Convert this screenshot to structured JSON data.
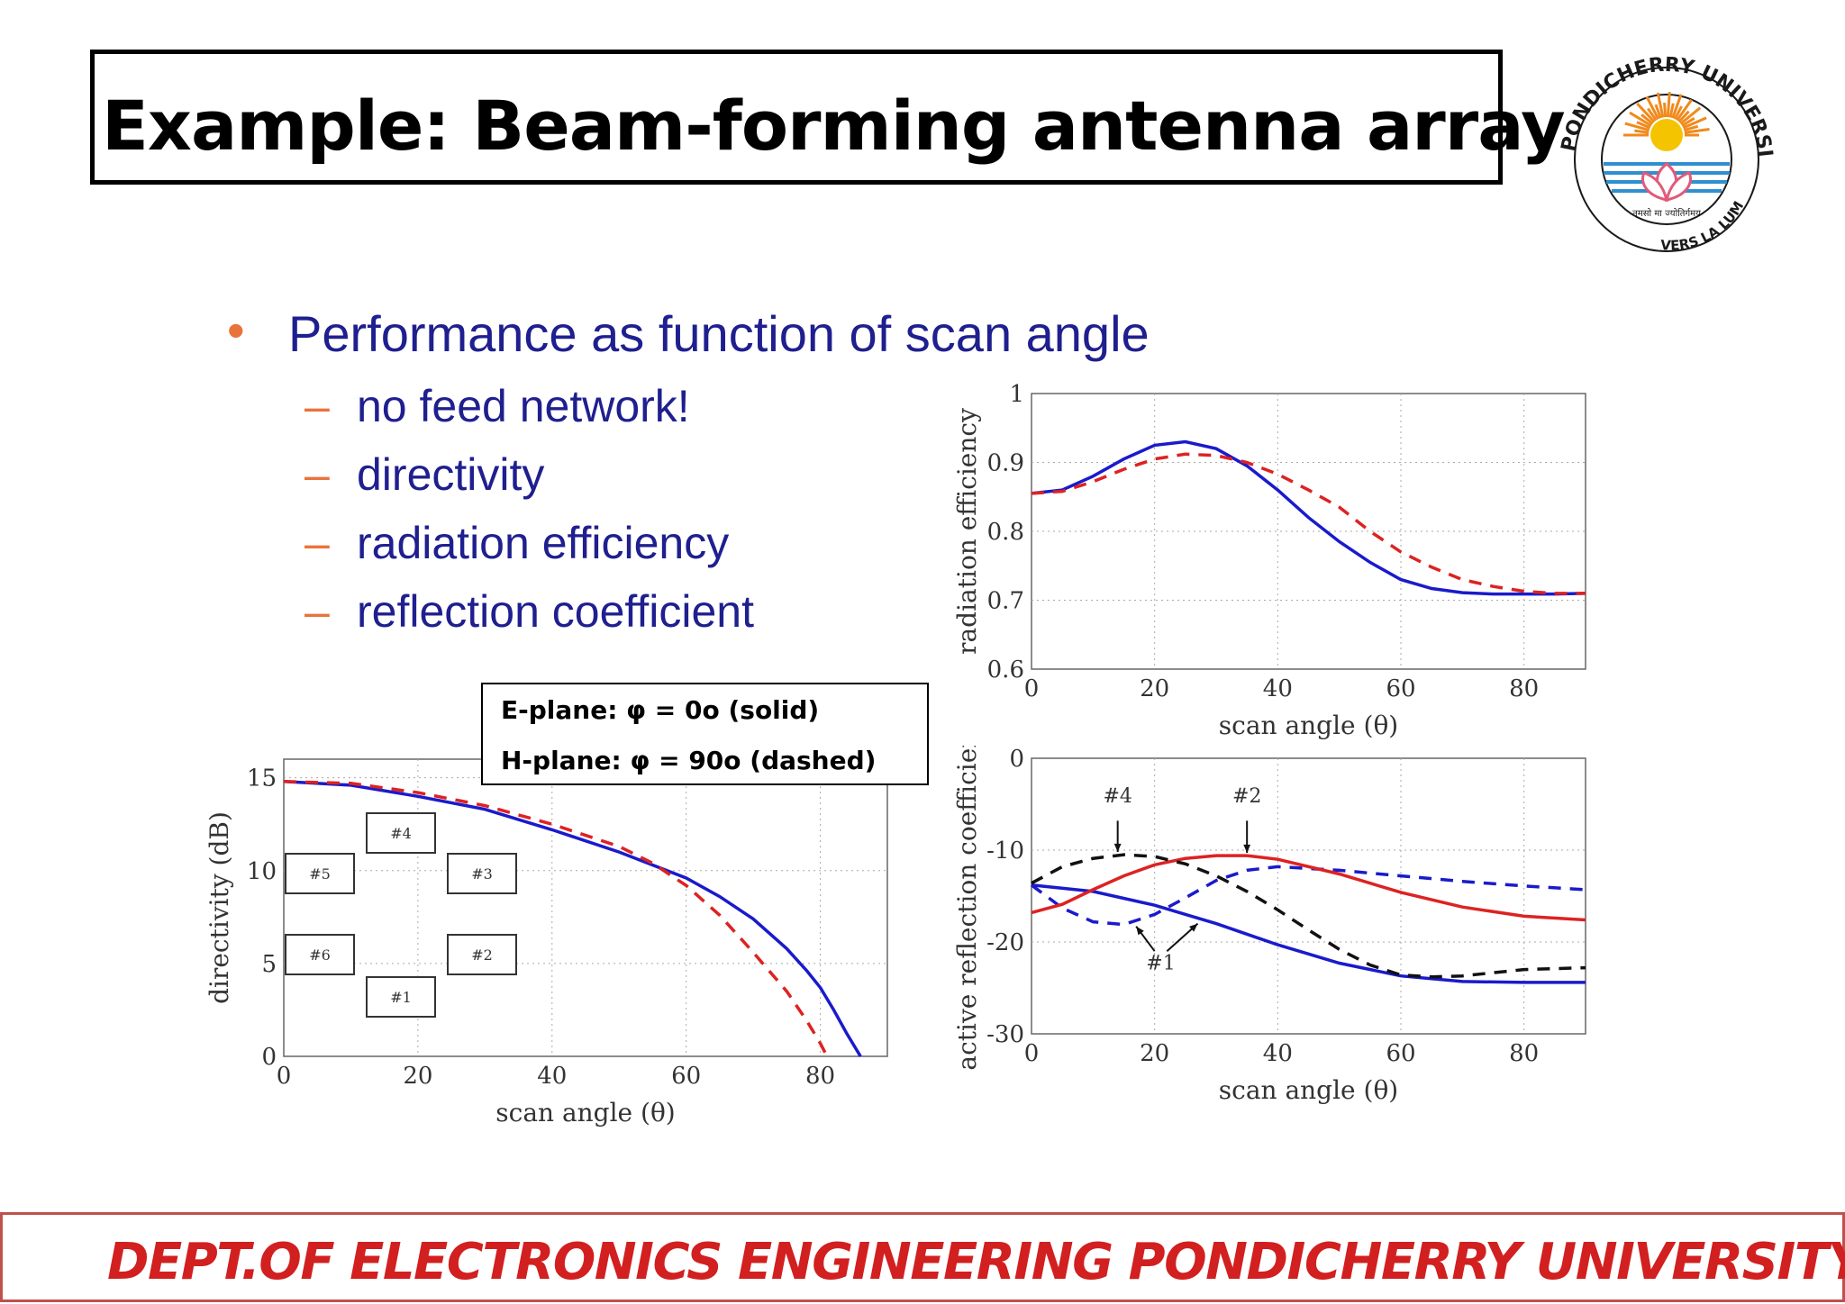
{
  "slide": {
    "title": "Example: Beam-forming antenna array",
    "bullet": "Performance as function of scan angle",
    "subbullets": [
      "no feed network!",
      "directivity",
      "radiation efficiency",
      "reflection coefficient"
    ],
    "legend": [
      "E-plane: φ = 0o (solid)",
      "H-plane: φ = 90o (dashed)"
    ],
    "footer": "DEPT.OF ELECTRONICS ENGINEERING PONDICHERRY UNIVERSITY"
  },
  "logo": {
    "top_text": "PONDICHERRY UNIVERSITY",
    "bottom_text": "VERS LA LUMIERE",
    "motto": "तमसो मा ज्योतिर्गमय",
    "colors": {
      "sun": "#f5c400",
      "rays": "#f08a1c",
      "waves": "#2f8fd0",
      "lotus": "#e25a7a",
      "ring": "#1a1a1a"
    }
  },
  "colors": {
    "title_text": "#000000",
    "bullet_text": "#1f1f8f",
    "bullet_marker": "#e8743b",
    "footer_text": "#d21f1f",
    "footer_border": "#c0504d",
    "e_plane": "#1a1acc",
    "h_plane": "#dd2222",
    "black": "#111111"
  },
  "chart_data": [
    {
      "type": "line",
      "ylabel": "directivity (dB)",
      "xlabel": "scan angle (θ)",
      "xlim": [
        0,
        90
      ],
      "ylim": [
        0,
        16
      ],
      "xticks": [
        0,
        20,
        40,
        60,
        80
      ],
      "yticks": [
        0,
        5,
        10,
        15
      ],
      "grid": true,
      "series": [
        {
          "line": "solid",
          "color": "#1a1acc",
          "x": [
            0,
            10,
            20,
            30,
            40,
            50,
            60,
            65,
            70,
            75,
            78,
            80,
            82,
            84,
            86
          ],
          "y": [
            14.8,
            14.6,
            14.0,
            13.3,
            12.2,
            11.0,
            9.6,
            8.6,
            7.4,
            5.8,
            4.6,
            3.7,
            2.5,
            1.2,
            0
          ]
        },
        {
          "line": "dashed",
          "color": "#dd2222",
          "x": [
            0,
            10,
            20,
            30,
            40,
            50,
            55,
            60,
            65,
            70,
            75,
            78,
            80,
            81
          ],
          "y": [
            14.8,
            14.7,
            14.2,
            13.5,
            12.5,
            11.3,
            10.4,
            9.2,
            7.6,
            5.6,
            3.5,
            1.9,
            0.7,
            0
          ]
        }
      ],
      "inset_elements": [
        "#4",
        "#5",
        "#3",
        "#6",
        "#2",
        "#1"
      ]
    },
    {
      "type": "line",
      "ylabel": "radiation efficiency",
      "xlabel": "scan angle (θ)",
      "xlim": [
        0,
        90
      ],
      "ylim": [
        0.6,
        1
      ],
      "xticks": [
        0,
        20,
        40,
        60,
        80
      ],
      "yticks": [
        0.6,
        0.7,
        0.8,
        0.9,
        1
      ],
      "grid": true,
      "series": [
        {
          "line": "solid",
          "color": "#1a1acc",
          "x": [
            0,
            5,
            10,
            15,
            20,
            25,
            30,
            35,
            40,
            45,
            50,
            55,
            60,
            65,
            70,
            75,
            80,
            85,
            90
          ],
          "y": [
            0.855,
            0.86,
            0.88,
            0.905,
            0.925,
            0.93,
            0.92,
            0.895,
            0.86,
            0.82,
            0.785,
            0.755,
            0.73,
            0.717,
            0.711,
            0.709,
            0.709,
            0.709,
            0.71
          ]
        },
        {
          "line": "dashed",
          "color": "#dd2222",
          "x": [
            0,
            5,
            10,
            15,
            20,
            25,
            30,
            35,
            40,
            45,
            50,
            55,
            60,
            65,
            70,
            75,
            80,
            85,
            90
          ],
          "y": [
            0.855,
            0.858,
            0.872,
            0.89,
            0.905,
            0.912,
            0.91,
            0.9,
            0.883,
            0.86,
            0.835,
            0.8,
            0.77,
            0.748,
            0.73,
            0.72,
            0.713,
            0.71,
            0.71
          ]
        }
      ]
    },
    {
      "type": "line",
      "ylabel": "active reflection coefficient",
      "xlabel": "scan angle (θ)",
      "xlim": [
        0,
        90
      ],
      "ylim": [
        -30,
        0
      ],
      "xticks": [
        0,
        20,
        40,
        60,
        80
      ],
      "yticks": [
        0,
        -10,
        -20,
        -30
      ],
      "grid": true,
      "series": [
        {
          "line": "solid",
          "color": "#1a1acc",
          "x": [
            0,
            10,
            20,
            30,
            40,
            50,
            60,
            70,
            80,
            90
          ],
          "y": [
            -13.8,
            -14.5,
            -16.0,
            -18.0,
            -20.3,
            -22.3,
            -23.7,
            -24.3,
            -24.4,
            -24.4
          ]
        },
        {
          "line": "dashed",
          "color": "#1a1acc",
          "x": [
            0,
            5,
            10,
            15,
            20,
            25,
            30,
            35,
            40,
            50,
            60,
            70,
            80,
            90
          ],
          "y": [
            -13.8,
            -16.3,
            -17.8,
            -18.1,
            -17.0,
            -15.2,
            -13.3,
            -12.2,
            -11.8,
            -12.2,
            -12.8,
            -13.4,
            -13.9,
            -14.3
          ]
        },
        {
          "line": "solid",
          "color": "#dd2222",
          "x": [
            0,
            5,
            10,
            15,
            20,
            25,
            30,
            35,
            40,
            50,
            60,
            70,
            80,
            90
          ],
          "y": [
            -16.8,
            -15.9,
            -14.3,
            -12.8,
            -11.6,
            -10.9,
            -10.6,
            -10.6,
            -11.0,
            -12.6,
            -14.6,
            -16.2,
            -17.2,
            -17.6
          ]
        },
        {
          "line": "dashed",
          "color": "#111111",
          "x": [
            0,
            5,
            10,
            15,
            20,
            25,
            30,
            35,
            40,
            45,
            50,
            55,
            60,
            65,
            70,
            80,
            90
          ],
          "y": [
            -13.6,
            -11.8,
            -10.9,
            -10.5,
            -10.7,
            -11.5,
            -12.8,
            -14.5,
            -16.5,
            -18.7,
            -20.8,
            -22.5,
            -23.6,
            -23.8,
            -23.7,
            -23.0,
            -22.8
          ]
        }
      ],
      "annotations": [
        "#4",
        "#2",
        "#1"
      ]
    }
  ]
}
